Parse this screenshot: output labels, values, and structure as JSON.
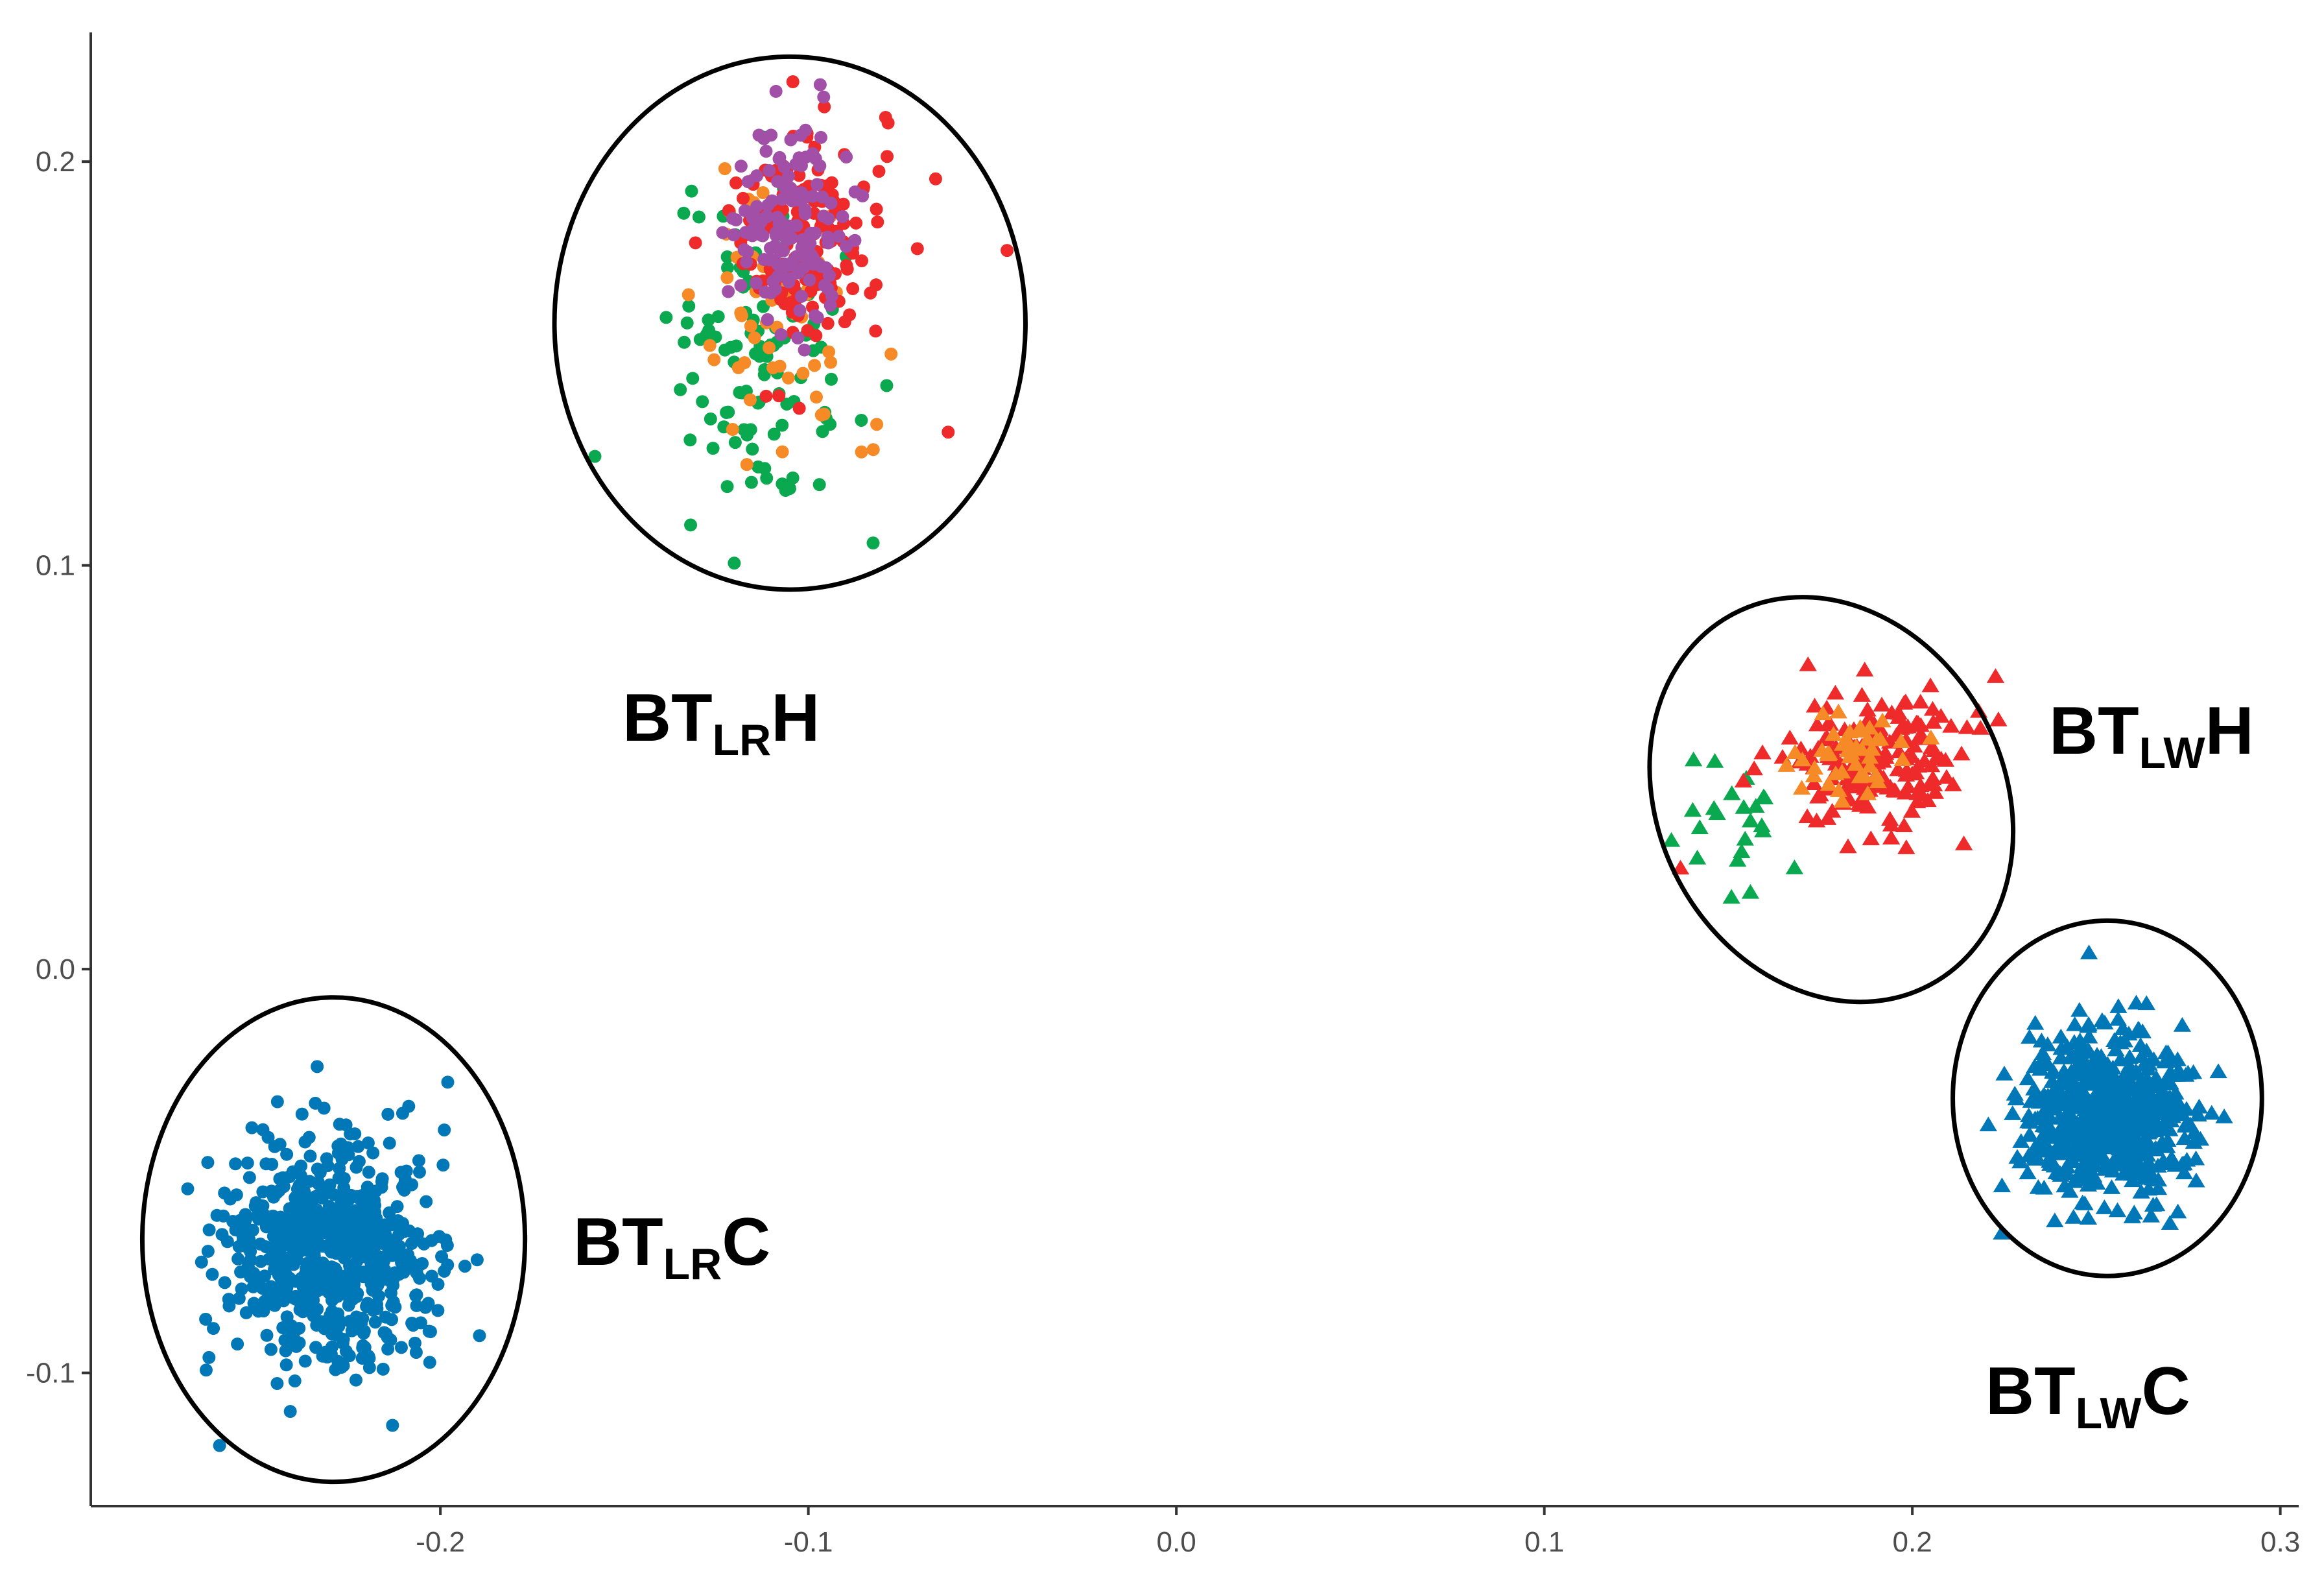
{
  "chart_data": {
    "type": "scatter",
    "title": "",
    "xlabel": "",
    "ylabel": "",
    "xlim": [
      -0.295,
      0.305
    ],
    "ylim": [
      -0.133,
      0.232
    ],
    "x_ticks": [
      "-0.2",
      "-0.1",
      "0.0",
      "0.1",
      "0.2",
      "0.3"
    ],
    "x_tick_values": [
      -0.2,
      -0.1,
      0.0,
      0.1,
      0.2,
      0.3
    ],
    "y_ticks": [
      "-0.1",
      "0.0",
      "0.1",
      "0.2"
    ],
    "y_tick_values": [
      -0.1,
      0.0,
      0.1,
      0.2
    ],
    "grid": false,
    "legend": "none",
    "colors": {
      "blue": "#0077b6",
      "red": "#ee2a2a",
      "orange": "#f58a26",
      "green": "#0aa84f",
      "purple": "#a24fa8",
      "ellipse": "#000000"
    },
    "clusters": [
      {
        "label_main": "BT",
        "label_sub": "LR",
        "label_tail": "H",
        "marker": "circle",
        "center": [
          -0.105,
          0.16
        ],
        "ellipse_radii": [
          0.064,
          0.066
        ],
        "point_groups": [
          {
            "color": "green",
            "count": 110,
            "center": [
              -0.112,
              0.152
            ],
            "spread": [
              0.012,
              0.02
            ]
          },
          {
            "color": "orange",
            "count": 60,
            "center": [
              -0.106,
              0.163
            ],
            "spread": [
              0.01,
              0.018
            ]
          },
          {
            "color": "red",
            "count": 160,
            "center": [
              -0.1,
              0.182
            ],
            "spread": [
              0.01,
              0.014
            ]
          },
          {
            "color": "purple",
            "count": 150,
            "center": [
              -0.105,
              0.184
            ],
            "spread": [
              0.008,
              0.012
            ]
          }
        ],
        "outliers": [
          {
            "x": -0.046,
            "y": 0.178,
            "color": "red"
          },
          {
            "x": -0.062,
            "y": 0.133,
            "color": "red"
          },
          {
            "x": -0.158,
            "y": 0.127,
            "color": "green"
          },
          {
            "x": -0.132,
            "y": 0.11,
            "color": "green"
          },
          {
            "x": -0.097,
            "y": 0.12,
            "color": "green"
          }
        ]
      },
      {
        "label_main": "BT",
        "label_sub": "LR",
        "label_tail": "C",
        "marker": "circle",
        "center": [
          -0.229,
          -0.067
        ],
        "ellipse_radii": [
          0.052,
          0.06
        ],
        "point_groups": [
          {
            "color": "blue",
            "count": 650,
            "center": [
              -0.23,
              -0.07
            ],
            "spread": [
              0.014,
              0.014
            ]
          }
        ],
        "outliers": [
          {
            "x": -0.198,
            "y": -0.028,
            "color": "blue"
          },
          {
            "x": -0.19,
            "y": -0.072,
            "color": "blue"
          },
          {
            "x": -0.213,
            "y": -0.113,
            "color": "blue"
          },
          {
            "x": -0.26,
            "y": -0.118,
            "color": "blue"
          }
        ]
      },
      {
        "label_main": "BT",
        "label_sub": "LW",
        "label_tail": "H",
        "marker": "triangle",
        "center": [
          0.178,
          0.042
        ],
        "ellipse_radii": [
          0.047,
          0.052
        ],
        "point_groups": [
          {
            "color": "green",
            "count": 22,
            "center": [
              0.153,
              0.037
            ],
            "spread": [
              0.008,
              0.007
            ]
          },
          {
            "color": "red",
            "count": 170,
            "center": [
              0.19,
              0.052
            ],
            "spread": [
              0.011,
              0.009
            ]
          },
          {
            "color": "orange",
            "count": 45,
            "center": [
              0.185,
              0.053
            ],
            "spread": [
              0.008,
              0.006
            ]
          }
        ],
        "outliers": [
          {
            "x": 0.137,
            "y": 0.025,
            "color": "red"
          },
          {
            "x": 0.156,
            "y": 0.019,
            "color": "green"
          },
          {
            "x": 0.214,
            "y": 0.031,
            "color": "red"
          }
        ]
      },
      {
        "label_main": "BT",
        "label_sub": "LW",
        "label_tail": "C",
        "marker": "triangle",
        "center": [
          0.253,
          -0.032
        ],
        "ellipse_radii": [
          0.042,
          0.044
        ],
        "point_groups": [
          {
            "color": "blue",
            "count": 650,
            "center": [
              0.253,
              -0.036
            ],
            "spread": [
              0.011,
              0.01
            ]
          }
        ],
        "outliers": [
          {
            "x": 0.248,
            "y": 0.004,
            "color": "blue"
          },
          {
            "x": 0.225,
            "y": -0.026,
            "color": "blue"
          },
          {
            "x": 0.27,
            "y": -0.063,
            "color": "blue"
          }
        ]
      }
    ]
  }
}
